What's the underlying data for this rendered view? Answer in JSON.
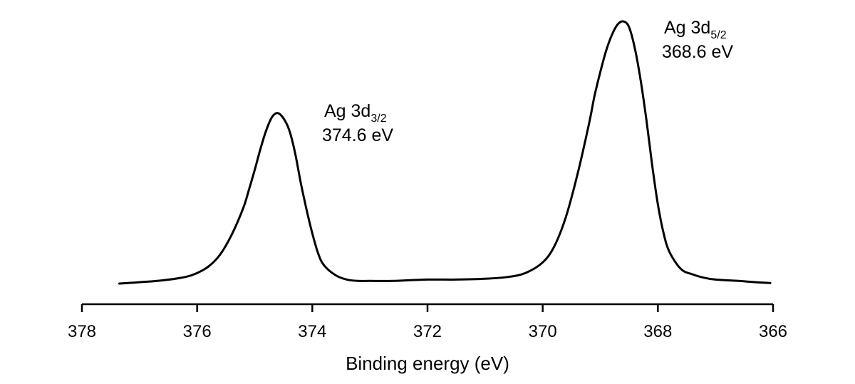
{
  "chart_data": {
    "type": "line",
    "title": "",
    "xlabel": "Binding energy (eV)",
    "ylabel": "",
    "xlim": [
      378,
      366
    ],
    "x_reversed": true,
    "ylim": [
      0,
      1
    ],
    "grid": false,
    "xticks": [
      "378",
      "376",
      "374",
      "372",
      "370",
      "368",
      "366"
    ],
    "annotations": [
      {
        "name": "ag-3d32",
        "species": "Ag 3d",
        "subscript": "3/2",
        "energy": "374.6 eV",
        "x": 374.6
      },
      {
        "name": "ag-3d52",
        "species": "Ag 3d",
        "subscript": "5/2",
        "energy": "368.6 eV",
        "x": 368.6
      }
    ],
    "series": [
      {
        "x": [
          377.35,
          377.0,
          376.6,
          376.2,
          376.0,
          375.8,
          375.6,
          375.4,
          375.2,
          375.1,
          375.0,
          374.9,
          374.8,
          374.7,
          374.6,
          374.5,
          374.4,
          374.3,
          374.2,
          374.1,
          374.0,
          373.9,
          373.8,
          373.6,
          373.4,
          373.2,
          373.0,
          372.6,
          372.0,
          371.5,
          371.0,
          370.6,
          370.3,
          370.0,
          369.8,
          369.6,
          369.4,
          369.2,
          369.1,
          369.0,
          368.9,
          368.8,
          368.7,
          368.6,
          368.5,
          368.4,
          368.3,
          368.2,
          368.1,
          368.0,
          367.9,
          367.8,
          367.6,
          367.4,
          367.2,
          367.0,
          366.6,
          366.3,
          366.05
        ],
        "y": [
          0.0,
          0.005,
          0.012,
          0.025,
          0.04,
          0.065,
          0.11,
          0.185,
          0.285,
          0.355,
          0.43,
          0.51,
          0.58,
          0.63,
          0.645,
          0.625,
          0.58,
          0.495,
          0.38,
          0.28,
          0.19,
          0.115,
          0.07,
          0.032,
          0.015,
          0.01,
          0.01,
          0.01,
          0.015,
          0.015,
          0.018,
          0.025,
          0.04,
          0.08,
          0.14,
          0.25,
          0.41,
          0.6,
          0.71,
          0.8,
          0.88,
          0.94,
          0.98,
          0.992,
          0.97,
          0.89,
          0.77,
          0.62,
          0.45,
          0.3,
          0.19,
          0.12,
          0.055,
          0.035,
          0.022,
          0.015,
          0.01,
          0.005,
          0.002
        ]
      }
    ]
  }
}
